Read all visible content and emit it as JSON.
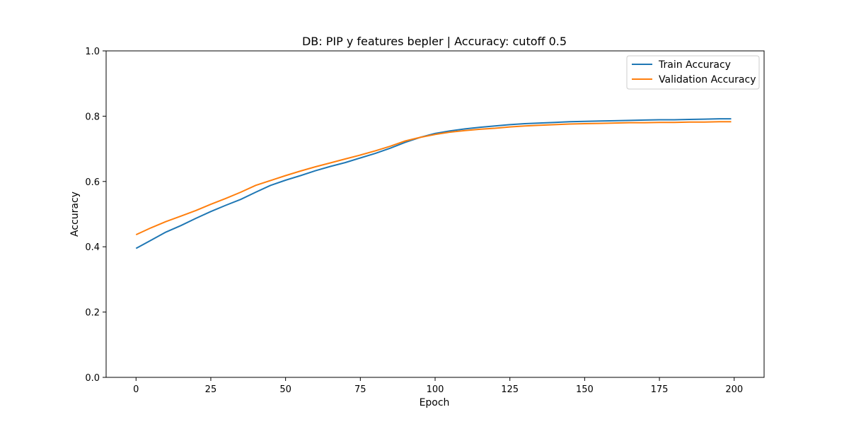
{
  "chart_data": {
    "type": "line",
    "title": "DB: PIP y features bepler | Accuracy: cutoff 0.5",
    "xlabel": "Epoch",
    "ylabel": "Accuracy",
    "xlim": [
      -10,
      210
    ],
    "ylim": [
      0,
      1
    ],
    "xticks": [
      0,
      25,
      50,
      75,
      100,
      125,
      150,
      175,
      200
    ],
    "yticks": [
      0.0,
      0.2,
      0.4,
      0.6,
      0.8,
      1.0
    ],
    "xtick_labels": [
      "0",
      "25",
      "50",
      "75",
      "100",
      "125",
      "150",
      "175",
      "200"
    ],
    "ytick_labels": [
      "0.0",
      "0.2",
      "0.4",
      "0.6",
      "0.8",
      "1.0"
    ],
    "grid": false,
    "legend": {
      "position": "top-right"
    },
    "series": [
      {
        "name": "Train Accuracy",
        "color": "#1f77b4",
        "x": [
          0,
          5,
          10,
          15,
          20,
          25,
          30,
          35,
          40,
          45,
          50,
          55,
          60,
          65,
          70,
          75,
          80,
          85,
          90,
          95,
          100,
          105,
          110,
          115,
          120,
          125,
          130,
          135,
          140,
          145,
          150,
          155,
          160,
          165,
          170,
          175,
          180,
          185,
          190,
          195,
          199
        ],
        "y": [
          0.395,
          0.42,
          0.445,
          0.465,
          0.487,
          0.508,
          0.527,
          0.545,
          0.567,
          0.588,
          0.604,
          0.618,
          0.633,
          0.646,
          0.658,
          0.672,
          0.686,
          0.702,
          0.72,
          0.735,
          0.747,
          0.755,
          0.761,
          0.766,
          0.77,
          0.774,
          0.777,
          0.779,
          0.781,
          0.783,
          0.784,
          0.785,
          0.786,
          0.787,
          0.788,
          0.789,
          0.789,
          0.79,
          0.791,
          0.792,
          0.792
        ]
      },
      {
        "name": "Validation Accuracy",
        "color": "#ff7f0e",
        "x": [
          0,
          5,
          10,
          15,
          20,
          25,
          30,
          35,
          40,
          45,
          50,
          55,
          60,
          65,
          70,
          75,
          80,
          85,
          90,
          95,
          100,
          105,
          110,
          115,
          120,
          125,
          130,
          135,
          140,
          145,
          150,
          155,
          160,
          165,
          170,
          175,
          180,
          185,
          190,
          195,
          199
        ],
        "y": [
          0.437,
          0.458,
          0.477,
          0.494,
          0.511,
          0.53,
          0.548,
          0.567,
          0.588,
          0.603,
          0.618,
          0.632,
          0.645,
          0.657,
          0.669,
          0.681,
          0.694,
          0.708,
          0.724,
          0.735,
          0.744,
          0.751,
          0.756,
          0.76,
          0.763,
          0.767,
          0.77,
          0.772,
          0.774,
          0.776,
          0.777,
          0.778,
          0.779,
          0.78,
          0.78,
          0.781,
          0.781,
          0.782,
          0.782,
          0.783,
          0.783
        ]
      }
    ]
  }
}
